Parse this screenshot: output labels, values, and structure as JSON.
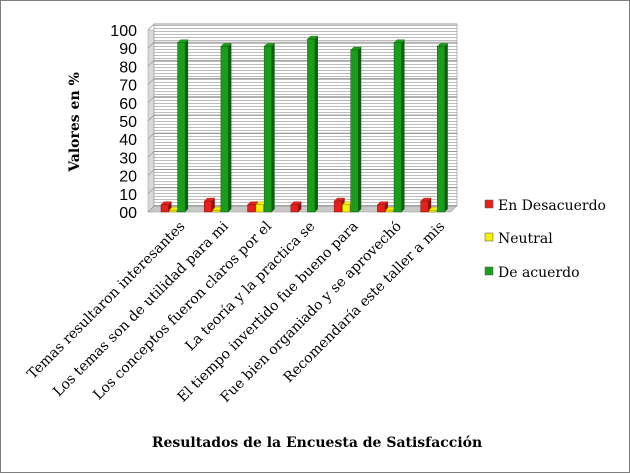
{
  "chart_data": {
    "type": "bar",
    "xlabel": "Resultados de la Encuesta de Satisfacción",
    "ylabel": "Valores en %",
    "ylim": [
      0,
      100
    ],
    "yticks": [
      0,
      10,
      20,
      30,
      40,
      50,
      60,
      70,
      80,
      90,
      100
    ],
    "ytick_labels": [
      "00",
      "10",
      "20",
      "30",
      "40",
      "50",
      "60",
      "70",
      "80",
      "90",
      "100"
    ],
    "grid": true,
    "legend_position": "right",
    "categories": [
      "Temas resultaron interesantes",
      "Los temas son de utilidad para mi",
      "Los conceptos fueron claros por el",
      "La teoría y la practica se",
      "El tiempo invertido fue bueno para",
      "Fue bien organiado y se aprovechó",
      "Recomendaría este taller a mis"
    ],
    "series": [
      {
        "name": "En Desacuerdo",
        "color": "#e8201a",
        "values": [
          4,
          6,
          4,
          4,
          6,
          4,
          6
        ]
      },
      {
        "name": "Neutral",
        "color": "#f5f200",
        "values": [
          1,
          1,
          4,
          0,
          4,
          1,
          1
        ]
      },
      {
        "name": "De acuerdo",
        "color": "#1a9e1a",
        "values": [
          93,
          91,
          91,
          95,
          89,
          93,
          91
        ]
      }
    ]
  }
}
